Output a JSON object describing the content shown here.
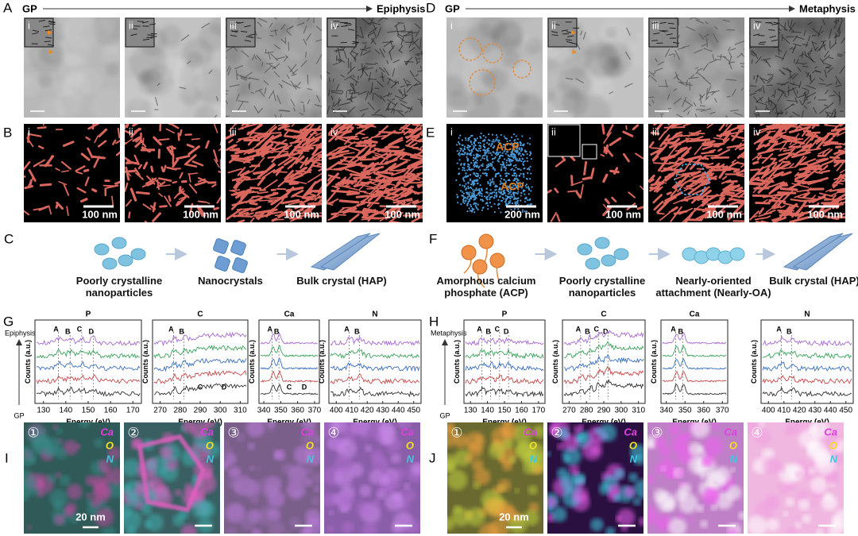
{
  "panel_a": {
    "label": "A",
    "start": "GP",
    "end": "Epiphysis",
    "images": [
      "i",
      "ii",
      "iii",
      "iv"
    ]
  },
  "panel_b": {
    "label": "B",
    "images": [
      {
        "num": "i",
        "scale": "100 nm"
      },
      {
        "num": "ii",
        "scale": "100 nm"
      },
      {
        "num": "iii",
        "scale": "100 nm"
      },
      {
        "num": "iv",
        "scale": "100 nm"
      }
    ]
  },
  "panel_c": {
    "label": "C",
    "steps": [
      "Poorly crystalline nanoparticles",
      "Nanocrystals",
      "Bulk crystal (HAP)"
    ]
  },
  "panel_d": {
    "label": "D",
    "start": "GP",
    "end": "Metaphysis",
    "images": [
      "i",
      "ii",
      "iii",
      "iv"
    ]
  },
  "panel_e": {
    "label": "E",
    "images": [
      {
        "num": "i",
        "scale": "200 nm",
        "annotations": [
          "ACP",
          "ACP"
        ]
      },
      {
        "num": "ii",
        "scale": "100 nm"
      },
      {
        "num": "iii",
        "scale": "100 nm"
      },
      {
        "num": "iv",
        "scale": "100 nm"
      }
    ]
  },
  "panel_f": {
    "label": "F",
    "steps": [
      "Amorphous calcium phosphate (ACP)",
      "Poorly crystalline nanoparticles",
      "Nearly-oriented attachment (Nearly-OA)",
      "Bulk crystal (HAP)"
    ]
  },
  "panel_g": {
    "label": "G",
    "axis_top": "Epiphysis",
    "axis_bottom": "GP",
    "ylabel": "Counts (a.u.)",
    "xlabel": "Energy (eV)",
    "plots": [
      {
        "title": "P",
        "xticks": [
          "130",
          "140",
          "150",
          "160",
          "170"
        ],
        "peaks": [
          "A",
          "B",
          "C",
          "D"
        ]
      },
      {
        "title": "C",
        "xticks": [
          "270",
          "280",
          "290",
          "300",
          "310"
        ],
        "peaks": [
          "A",
          "B"
        ],
        "bottom_peaks": [
          "C",
          "D"
        ]
      },
      {
        "title": "Ca",
        "xticks": [
          "340",
          "350",
          "360",
          "370"
        ],
        "peaks": [
          "A",
          "B"
        ],
        "bottom_peaks": [
          "C",
          "D"
        ]
      },
      {
        "title": "N",
        "xticks": [
          "400",
          "410",
          "420",
          "430",
          "440",
          "450"
        ],
        "peaks": [
          "A",
          "B"
        ]
      }
    ]
  },
  "panel_h": {
    "label": "H",
    "axis_top": "Metaphysis",
    "axis_bottom": "GP",
    "ylabel": "Counts (a.u.)",
    "xlabel": "Energy (eV)",
    "plots": [
      {
        "title": "P",
        "xticks": [
          "130",
          "140",
          "150",
          "160",
          "170"
        ],
        "peaks": [
          "A",
          "B",
          "C",
          "D"
        ]
      },
      {
        "title": "C",
        "xticks": [
          "270",
          "280",
          "290",
          "300",
          "310"
        ],
        "peaks": [
          "A",
          "B",
          "C",
          "D"
        ]
      },
      {
        "title": "Ca",
        "xticks": [
          "340",
          "350",
          "360",
          "370"
        ],
        "peaks": [
          "A",
          "B"
        ]
      },
      {
        "title": "N",
        "xticks": [
          "400",
          "410",
          "420",
          "430",
          "440",
          "450"
        ],
        "peaks": [
          "A",
          "B"
        ]
      }
    ]
  },
  "panel_i": {
    "label": "I",
    "legend": [
      "Ca",
      "O",
      "N"
    ],
    "images": [
      {
        "num": "①",
        "scale": "20 nm"
      },
      {
        "num": "②"
      },
      {
        "num": "③"
      },
      {
        "num": "④"
      }
    ]
  },
  "panel_j": {
    "label": "J",
    "legend": [
      "Ca",
      "O",
      "N"
    ],
    "images": [
      {
        "num": "①",
        "scale": "20 nm"
      },
      {
        "num": "②"
      },
      {
        "num": "③"
      },
      {
        "num": "④"
      }
    ]
  }
}
